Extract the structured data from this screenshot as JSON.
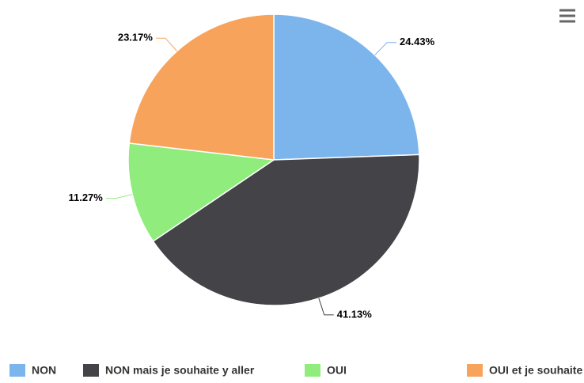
{
  "chart_data": {
    "type": "pie",
    "categories": [
      "NON",
      "NON mais je souhaite y aller",
      "OUI",
      "OUI et je souhaite y retourner"
    ],
    "values": [
      24.43,
      41.13,
      11.27,
      23.17
    ],
    "value_labels": [
      "24.43%",
      "41.13%",
      "11.27%",
      "23.17%"
    ],
    "colors": [
      "#7cb5ec",
      "#434348",
      "#90ed7d",
      "#f7a35c"
    ],
    "legend": "bottom"
  }
}
